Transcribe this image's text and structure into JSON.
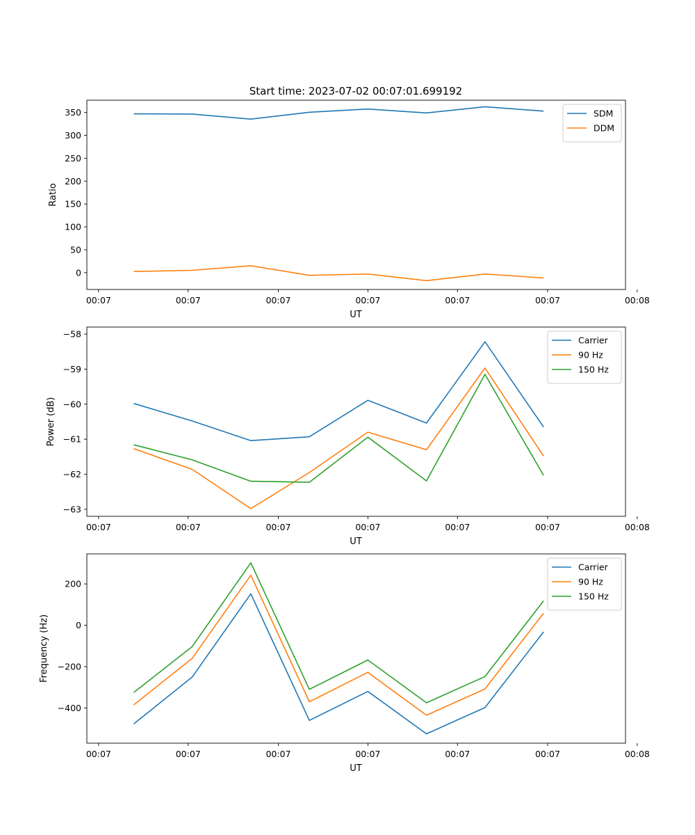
{
  "figure": {
    "title": "Start time: 2023-07-02 00:07:01.699192"
  },
  "colors": {
    "blue": "#1f77b4",
    "orange": "#ff7f0e",
    "green": "#2ca02c"
  },
  "chart_data": [
    {
      "type": "line",
      "title": "Start time: 2023-07-02 00:07:01.699192",
      "xlabel": "UT",
      "ylabel": "Ratio",
      "x": [
        1,
        2,
        3,
        4,
        5,
        6,
        7,
        8
      ],
      "xlim": [
        0.2,
        9.4
      ],
      "x_ticks": [
        0.4,
        1.93,
        3.47,
        5.0,
        6.53,
        8.07,
        9.6
      ],
      "x_tick_labels": [
        "00:07",
        "00:07",
        "00:07",
        "00:07",
        "00:07",
        "00:07",
        "00:08"
      ],
      "ylim": [
        -36.8,
        376.8
      ],
      "y_ticks": [
        0,
        50,
        100,
        150,
        200,
        250,
        300,
        350
      ],
      "y_tick_labels": [
        "0",
        "50",
        "100",
        "150",
        "200",
        "250",
        "300",
        "350"
      ],
      "legend": "top-right",
      "series": [
        {
          "name": "SDM",
          "color": "#1f77b4",
          "values": [
            347,
            346.5,
            335.5,
            350.5,
            357.5,
            349,
            362.5,
            353
          ]
        },
        {
          "name": "DDM",
          "color": "#ff7f0e",
          "values": [
            2.5,
            5,
            15,
            -6,
            -3,
            -17.5,
            -3,
            -11.5
          ]
        }
      ]
    },
    {
      "type": "line",
      "title": "",
      "xlabel": "UT",
      "ylabel": "Power (dB)",
      "x": [
        1,
        2,
        3,
        4,
        5,
        6,
        7,
        8
      ],
      "xlim": [
        0.2,
        9.4
      ],
      "x_ticks": [
        0.4,
        1.93,
        3.47,
        5.0,
        6.53,
        8.07,
        9.6
      ],
      "x_tick_labels": [
        "00:07",
        "00:07",
        "00:07",
        "00:07",
        "00:07",
        "00:07",
        "00:08"
      ],
      "ylim": [
        -63.2,
        -57.8
      ],
      "y_ticks": [
        -63,
        -62,
        -61,
        -60,
        -59,
        -58
      ],
      "y_tick_labels": [
        "−63",
        "−62",
        "−61",
        "−60",
        "−59",
        "−58"
      ],
      "legend": "top-right",
      "series": [
        {
          "name": "Carrier",
          "color": "#1f77b4",
          "values": [
            -59.98,
            -60.48,
            -61.04,
            -60.93,
            -59.89,
            -60.54,
            -58.22,
            -60.65
          ]
        },
        {
          "name": "90 Hz",
          "color": "#ff7f0e",
          "values": [
            -61.27,
            -61.86,
            -62.98,
            -61.95,
            -60.8,
            -61.3,
            -58.97,
            -61.48
          ]
        },
        {
          "name": "150 Hz",
          "color": "#2ca02c",
          "values": [
            -61.16,
            -61.59,
            -62.2,
            -62.23,
            -60.94,
            -62.19,
            -59.15,
            -62.03
          ]
        }
      ]
    },
    {
      "type": "line",
      "title": "",
      "xlabel": "UT",
      "ylabel": "Frequency (Hz)",
      "x": [
        1,
        2,
        3,
        4,
        5,
        6,
        7,
        8
      ],
      "xlim": [
        0.2,
        9.4
      ],
      "x_ticks": [
        0.4,
        1.93,
        3.47,
        5.0,
        6.53,
        8.07,
        9.6
      ],
      "x_tick_labels": [
        "00:07",
        "00:07",
        "00:07",
        "00:07",
        "00:07",
        "00:07",
        "00:08"
      ],
      "ylim": [
        -570,
        345
      ],
      "y_ticks": [
        -400,
        -200,
        0,
        200
      ],
      "y_tick_labels": [
        "−400",
        "−200",
        "0",
        "200"
      ],
      "legend": "top-right",
      "series": [
        {
          "name": "Carrier",
          "color": "#1f77b4",
          "values": [
            -477,
            -250,
            152,
            -460,
            -320,
            -525,
            -398,
            -32
          ]
        },
        {
          "name": "90 Hz",
          "color": "#ff7f0e",
          "values": [
            -385,
            -160,
            242,
            -370,
            -228,
            -435,
            -308,
            58
          ]
        },
        {
          "name": "150 Hz",
          "color": "#2ca02c",
          "values": [
            -325,
            -103,
            302,
            -310,
            -168,
            -375,
            -248,
            118
          ]
        }
      ]
    }
  ]
}
